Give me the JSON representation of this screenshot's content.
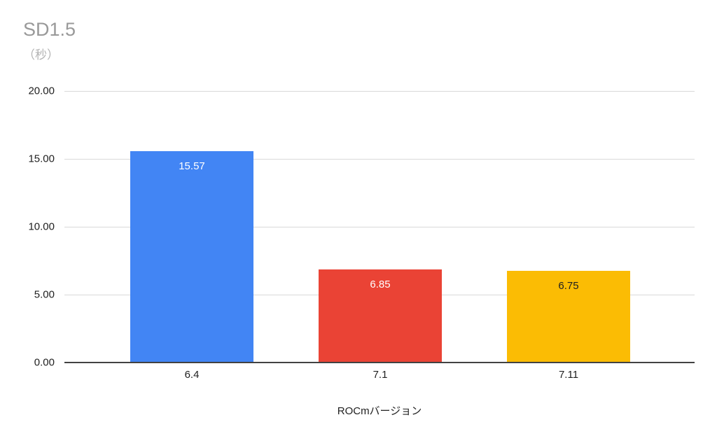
{
  "chart_data": {
    "type": "bar",
    "title": "SD1.5",
    "subtitle": "（秒）",
    "xlabel": "ROCmバージョン",
    "ylabel": "（秒）",
    "categories": [
      "6.4",
      "7.1",
      "7.11"
    ],
    "values": [
      15.57,
      6.85,
      6.75
    ],
    "value_labels": [
      "15.57",
      "6.85",
      "6.75"
    ],
    "bar_colors": [
      "#4285f4",
      "#ea4335",
      "#fbbc04"
    ],
    "bar_label_colors": [
      "#ffffff",
      "#ffffff",
      "#212121"
    ],
    "ylim": [
      0,
      20
    ],
    "y_tick_labels": [
      "20.00",
      "15.00",
      "10.00",
      "5.00",
      "0.00"
    ],
    "y_tick_step": 5,
    "grid": true,
    "legend": "none"
  }
}
